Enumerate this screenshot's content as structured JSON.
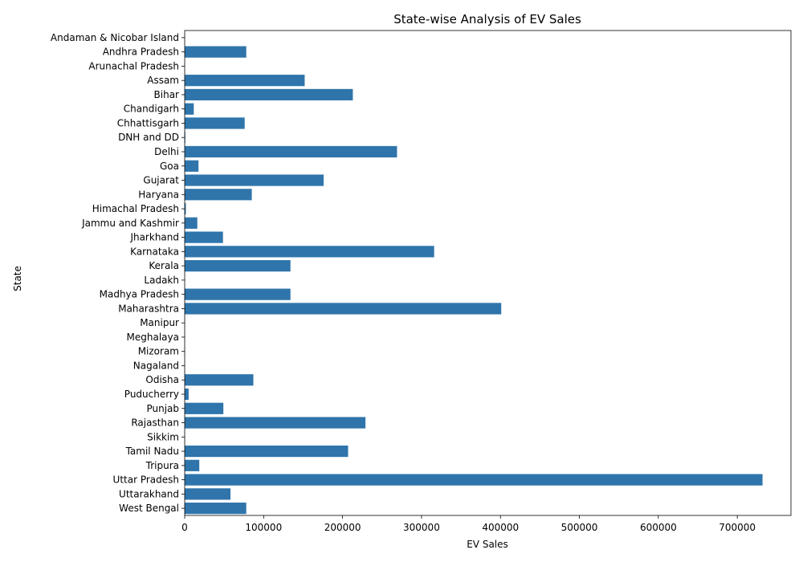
{
  "chart_data": {
    "type": "bar",
    "orientation": "horizontal",
    "title": "State-wise Analysis of EV Sales",
    "xlabel": "EV Sales",
    "ylabel": "State",
    "xlim": [
      0,
      768000
    ],
    "xticks": [
      0,
      100000,
      200000,
      300000,
      400000,
      500000,
      600000,
      700000
    ],
    "grid": false,
    "bar_color": "#2f75ab",
    "categories": [
      "Andaman & Nicobar Island",
      "Andhra Pradesh",
      "Arunachal Pradesh",
      "Assam",
      "Bihar",
      "Chandigarh",
      "Chhattisgarh",
      "DNH and DD",
      "Delhi",
      "Goa",
      "Gujarat",
      "Haryana",
      "Himachal Pradesh",
      "Jammu and Kashmir",
      "Jharkhand",
      "Karnataka",
      "Kerala",
      "Ladakh",
      "Madhya Pradesh",
      "Maharashtra",
      "Manipur",
      "Meghalaya",
      "Mizoram",
      "Nagaland",
      "Odisha",
      "Puducherry",
      "Punjab",
      "Rajasthan",
      "Sikkim",
      "Tamil Nadu",
      "Tripura",
      "Uttar Pradesh",
      "Uttarakhand",
      "West Bengal"
    ],
    "values": [
      100,
      78000,
      50,
      152000,
      213000,
      11500,
      76000,
      800,
      269000,
      17500,
      176000,
      85000,
      1500,
      16000,
      48500,
      316000,
      134000,
      50,
      134000,
      401000,
      300,
      200,
      300,
      100,
      87000,
      5000,
      49000,
      229000,
      200,
      207000,
      18500,
      732000,
      58000,
      78000
    ]
  }
}
